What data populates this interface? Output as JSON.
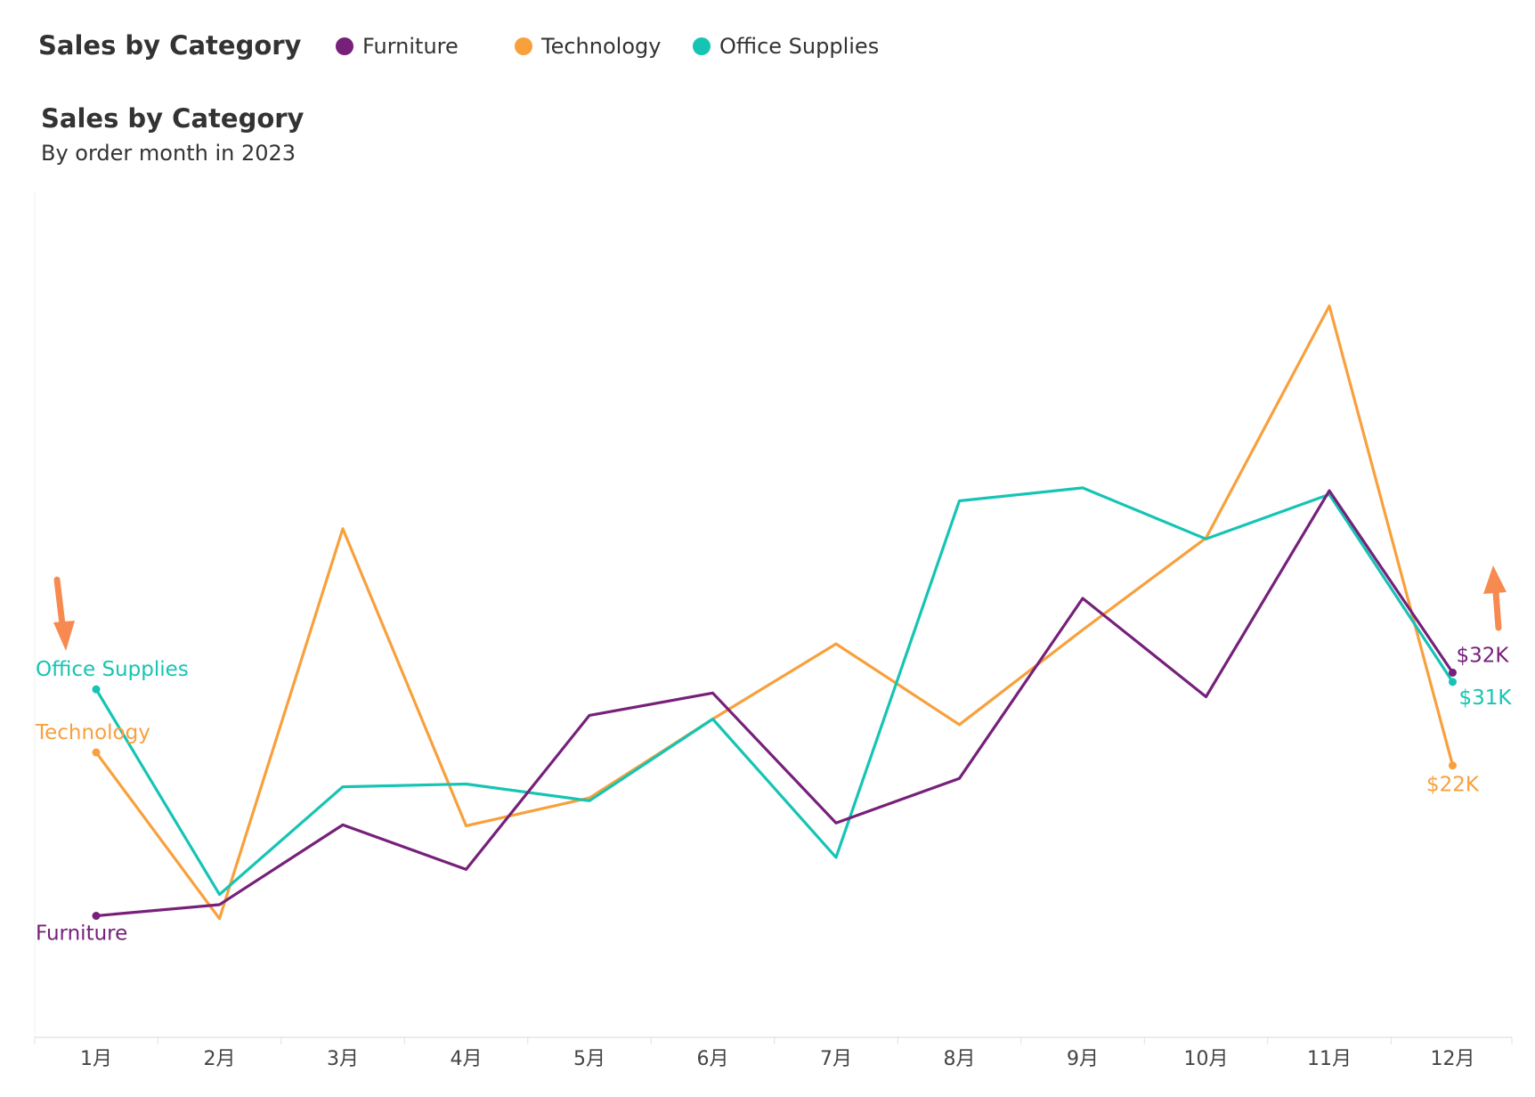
{
  "header": {
    "title": "Sales by Category"
  },
  "legend": [
    {
      "label": "Furniture",
      "color": "#76207a"
    },
    {
      "label": "Technology",
      "color": "#f8a03c"
    },
    {
      "label": "Office Supplies",
      "color": "#16c4b4"
    }
  ],
  "chart_data": {
    "type": "line",
    "title": "Sales by Category",
    "subtitle": "By order month in 2023",
    "categories": [
      "1月",
      "2月",
      "3月",
      "4月",
      "5月",
      "6月",
      "7月",
      "8月",
      "9月",
      "10月",
      "11月",
      "12月"
    ],
    "series": [
      {
        "name": "Furniture",
        "color": "#76207a",
        "values": [
          5.8,
          7.0,
          15.6,
          10.8,
          27.4,
          29.8,
          15.8,
          20.6,
          40.0,
          29.4,
          51.6,
          32.0
        ]
      },
      {
        "name": "Technology",
        "color": "#f8a03c",
        "values": [
          23.4,
          5.5,
          47.5,
          15.5,
          18.5,
          27.0,
          35.1,
          26.4,
          36.6,
          46.5,
          71.5,
          22.0
        ]
      },
      {
        "name": "Office Supplies",
        "color": "#16c4b4",
        "values": [
          30.2,
          8.1,
          19.7,
          20.0,
          18.2,
          27.0,
          12.1,
          50.5,
          51.9,
          46.4,
          51.2,
          31.0
        ]
      }
    ],
    "end_labels": [
      "$32K",
      "$22K",
      "$31K"
    ],
    "ylim": [
      0,
      80
    ],
    "annotations": [
      {
        "type": "arrow",
        "direction": "down",
        "color": "#f78a50",
        "position": "left"
      },
      {
        "type": "arrow",
        "direction": "up",
        "color": "#f78a50",
        "position": "right"
      }
    ]
  }
}
